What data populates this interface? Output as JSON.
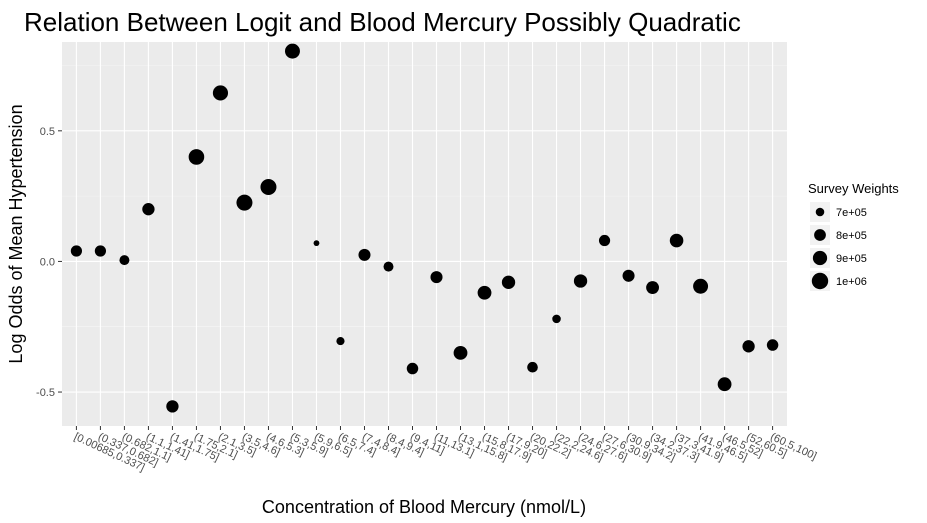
{
  "chart_data": {
    "type": "scatter",
    "title": "Relation Between Logit and Blood Mercury Possibly Quadratic",
    "xlabel": "Concentration of Blood Mercury (nmol/L)",
    "ylabel": "Log Odds of Mean Hypertension",
    "ylim": [
      -0.63,
      0.84
    ],
    "yticks": [
      -0.5,
      0.0,
      0.5
    ],
    "ytick_labels": [
      "-0.5",
      "0.0",
      "0.5"
    ],
    "grid": true,
    "legend": {
      "title": "Survey Weights",
      "placement": "right",
      "entries": [
        {
          "label": "7e+05",
          "value": 700000
        },
        {
          "label": "8e+05",
          "value": 800000
        },
        {
          "label": "9e+05",
          "value": 900000
        },
        {
          "label": "1e+06",
          "value": 1000000
        }
      ]
    },
    "categories": [
      "[0.00685,0.337]",
      "(0.337,0.682]",
      "(0.682,1.1]",
      "(1.1,1.41]",
      "(1.41,1.75]",
      "(1.75,2.1]",
      "(2.1,3.5]",
      "(3.5,4.6]",
      "(4.6,5.3]",
      "(5.3,5.9]",
      "(5.9,6.5]",
      "(6.5,7.4]",
      "(7.4,8.4]",
      "(8.4,9.4]",
      "(9.4,11]",
      "(11,13.1]",
      "(13.1,15.8]",
      "(15.8,17.9]",
      "(17.9,20]",
      "(20,22.2]",
      "(22.2,24.6]",
      "(24.6,27.6]",
      "(27.6,30.9]",
      "(30.9,34.2]",
      "(34.2,37.3]",
      "(37.3,41.9]",
      "(41.9,46.5]",
      "(46.5,52]",
      "(52,60.5]",
      "(60.5,100]"
    ],
    "values": [
      0.04,
      0.04,
      0.005,
      0.2,
      -0.555,
      0.4,
      0.645,
      0.225,
      0.285,
      0.805,
      0.07,
      -0.305,
      0.025,
      -0.02,
      -0.41,
      -0.06,
      -0.35,
      -0.12,
      -0.08,
      -0.405,
      -0.22,
      -0.075,
      0.08,
      -0.055,
      -0.1,
      0.08,
      -0.095,
      -0.47,
      -0.325,
      -0.32
    ],
    "weights": [
      780000,
      780000,
      740000,
      820000,
      820000,
      960000,
      940000,
      980000,
      980000,
      930000,
      640000,
      690000,
      810000,
      740000,
      790000,
      810000,
      880000,
      880000,
      860000,
      760000,
      700000,
      860000,
      780000,
      810000,
      840000,
      870000,
      930000,
      880000,
      820000,
      790000
    ]
  }
}
